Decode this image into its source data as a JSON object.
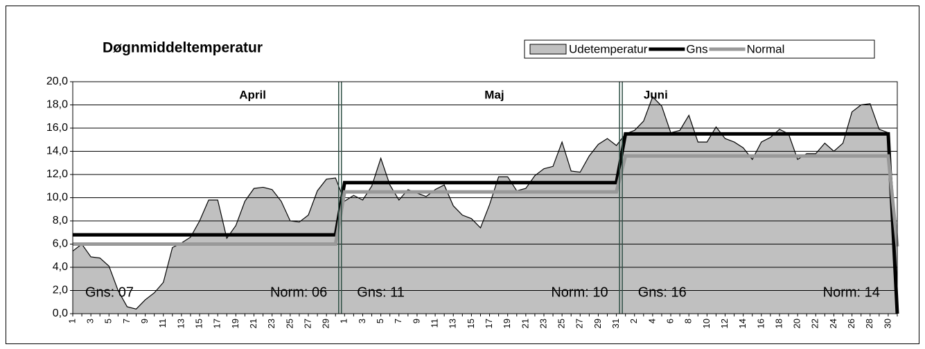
{
  "chart_data": {
    "type": "area",
    "title": "Døgnmiddeltemperatur",
    "categories": [
      "1",
      null,
      "3",
      null,
      "5",
      null,
      "7",
      null,
      "9",
      null,
      "11",
      null,
      "13",
      null,
      "15",
      null,
      "17",
      null,
      "19",
      null,
      "21",
      null,
      "23",
      null,
      "25",
      null,
      "27",
      null,
      "29",
      null,
      "1",
      null,
      "3",
      null,
      "5",
      null,
      "7",
      null,
      "9",
      null,
      "11",
      null,
      "13",
      null,
      "15",
      null,
      "17",
      null,
      "19",
      null,
      "21",
      null,
      "23",
      null,
      "25",
      null,
      "27",
      null,
      "29",
      null,
      "31",
      null,
      "2",
      null,
      "4",
      null,
      "6",
      null,
      "8",
      null,
      "10",
      null,
      "12",
      null,
      "14",
      null,
      "16",
      null,
      "18",
      null,
      "20",
      null,
      "22",
      null,
      "24",
      null,
      "26",
      null,
      "28",
      null,
      "30",
      null
    ],
    "series": [
      {
        "name": "Udetemperatur",
        "color": "#c0c0c0",
        "kind": "area",
        "values": [
          5.4,
          6.0,
          4.9,
          4.8,
          4.1,
          2.0,
          0.6,
          0.4,
          1.2,
          1.8,
          2.7,
          5.7,
          6.1,
          6.6,
          8.0,
          9.8,
          9.8,
          6.5,
          7.6,
          9.7,
          10.8,
          10.9,
          10.7,
          9.7,
          8.0,
          7.9,
          8.5,
          10.6,
          11.6,
          11.7,
          9.7,
          10.2,
          9.8,
          11.0,
          13.4,
          11.1,
          9.8,
          10.7,
          10.4,
          10.1,
          10.7,
          11.1,
          9.3,
          8.5,
          8.2,
          7.4,
          9.4,
          11.8,
          11.8,
          10.6,
          10.8,
          11.9,
          12.5,
          12.7,
          14.8,
          12.3,
          12.2,
          13.6,
          14.6,
          15.1,
          14.5,
          15.5,
          15.8,
          16.6,
          18.7,
          17.9,
          15.6,
          15.8,
          17.1,
          14.8,
          14.8,
          16.1,
          15.1,
          14.8,
          14.3,
          13.3,
          14.8,
          15.2,
          15.9,
          15.5,
          13.3,
          13.8,
          13.8,
          14.7,
          14.0,
          14.7,
          17.4,
          18.0,
          18.1,
          15.9,
          15.6,
          5.8
        ]
      },
      {
        "name": "Gns",
        "color": "#000000",
        "kind": "line",
        "values": [
          6.8,
          6.8,
          6.8,
          6.8,
          6.8,
          6.8,
          6.8,
          6.8,
          6.8,
          6.8,
          6.8,
          6.8,
          6.8,
          6.8,
          6.8,
          6.8,
          6.8,
          6.8,
          6.8,
          6.8,
          6.8,
          6.8,
          6.8,
          6.8,
          6.8,
          6.8,
          6.8,
          6.8,
          6.8,
          6.8,
          11.3,
          11.3,
          11.3,
          11.3,
          11.3,
          11.3,
          11.3,
          11.3,
          11.3,
          11.3,
          11.3,
          11.3,
          11.3,
          11.3,
          11.3,
          11.3,
          11.3,
          11.3,
          11.3,
          11.3,
          11.3,
          11.3,
          11.3,
          11.3,
          11.3,
          11.3,
          11.3,
          11.3,
          11.3,
          11.3,
          11.3,
          15.5,
          15.5,
          15.5,
          15.5,
          15.5,
          15.5,
          15.5,
          15.5,
          15.5,
          15.5,
          15.5,
          15.5,
          15.5,
          15.5,
          15.5,
          15.5,
          15.5,
          15.5,
          15.5,
          15.5,
          15.5,
          15.5,
          15.5,
          15.5,
          15.5,
          15.5,
          15.5,
          15.5,
          15.5,
          15.5,
          0
        ]
      },
      {
        "name": "Normal",
        "color": "#999999",
        "kind": "line",
        "values": [
          6.0,
          6.0,
          6.0,
          6.0,
          6.0,
          6.0,
          6.0,
          6.0,
          6.0,
          6.0,
          6.0,
          6.0,
          6.0,
          6.0,
          6.0,
          6.0,
          6.0,
          6.0,
          6.0,
          6.0,
          6.0,
          6.0,
          6.0,
          6.0,
          6.0,
          6.0,
          6.0,
          6.0,
          6.0,
          6.0,
          10.5,
          10.5,
          10.5,
          10.5,
          10.5,
          10.5,
          10.5,
          10.5,
          10.5,
          10.5,
          10.5,
          10.5,
          10.5,
          10.5,
          10.5,
          10.5,
          10.5,
          10.5,
          10.5,
          10.5,
          10.5,
          10.5,
          10.5,
          10.5,
          10.5,
          10.5,
          10.5,
          10.5,
          10.5,
          10.5,
          10.5,
          13.6,
          13.6,
          13.6,
          13.6,
          13.6,
          13.6,
          13.6,
          13.6,
          13.6,
          13.6,
          13.6,
          13.6,
          13.6,
          13.6,
          13.6,
          13.6,
          13.6,
          13.6,
          13.6,
          13.6,
          13.6,
          13.6,
          13.6,
          13.6,
          13.6,
          13.6,
          13.6,
          13.6,
          13.6,
          13.6,
          5.8
        ]
      }
    ],
    "months": [
      {
        "name": "April",
        "gns": "Gns: 07",
        "norm": "Norm: 06"
      },
      {
        "name": "Maj",
        "gns": "Gns: 11",
        "norm": "Norm: 10"
      },
      {
        "name": "Juni",
        "gns": "Gns: 16",
        "norm": "Norm: 14"
      }
    ],
    "ylim": [
      0,
      20
    ],
    "yticks": [
      {
        "value": 0,
        "label": "0,0"
      },
      {
        "value": 2,
        "label": "2,0"
      },
      {
        "value": 4,
        "label": "4,0"
      },
      {
        "value": 6,
        "label": "6,0"
      },
      {
        "value": 8,
        "label": "8,0"
      },
      {
        "value": 10,
        "label": "10,0"
      },
      {
        "value": 12,
        "label": "12,0"
      },
      {
        "value": 14,
        "label": "14,0"
      },
      {
        "value": 16,
        "label": "16,0"
      },
      {
        "value": 18,
        "label": "18,0"
      },
      {
        "value": 20,
        "label": "20,0"
      }
    ],
    "grid": true,
    "legend": "top-right"
  }
}
